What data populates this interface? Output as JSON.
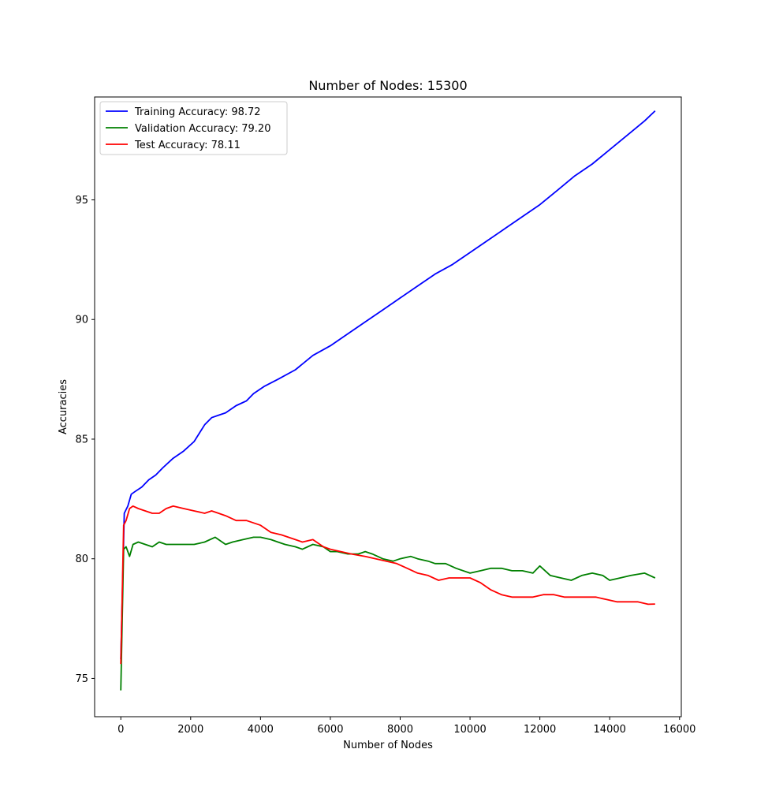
{
  "chart_data": {
    "type": "line",
    "title": "Number of Nodes: 15300",
    "xlabel": "Number of Nodes",
    "ylabel": "Accuracies",
    "xlim": [
      -750,
      16050
    ],
    "ylim": [
      73.4,
      99.3
    ],
    "xticks": [
      0,
      2000,
      4000,
      6000,
      8000,
      10000,
      12000,
      14000,
      16000
    ],
    "yticks": [
      75,
      80,
      85,
      90,
      95
    ],
    "grid": false,
    "legend_position": "upper-left",
    "series": [
      {
        "name": "Training Accuracy: 98.72",
        "color": "#0000ff",
        "x": [
          0,
          100,
          200,
          300,
          400,
          600,
          800,
          1000,
          1200,
          1500,
          1800,
          2100,
          2400,
          2600,
          2800,
          3000,
          3300,
          3600,
          3800,
          4100,
          4500,
          5000,
          5500,
          6000,
          6500,
          7000,
          7500,
          8000,
          8500,
          9000,
          9500,
          10000,
          10500,
          11000,
          11500,
          12000,
          12500,
          13000,
          13500,
          14000,
          14500,
          15000,
          15300
        ],
        "y": [
          75.8,
          81.9,
          82.2,
          82.7,
          82.8,
          83.0,
          83.3,
          83.5,
          83.8,
          84.2,
          84.5,
          84.9,
          85.6,
          85.9,
          86.0,
          86.1,
          86.4,
          86.6,
          86.9,
          87.2,
          87.5,
          87.9,
          88.5,
          88.9,
          89.4,
          89.9,
          90.4,
          90.9,
          91.4,
          91.9,
          92.3,
          92.8,
          93.3,
          93.8,
          94.3,
          94.8,
          95.4,
          96.0,
          96.5,
          97.1,
          97.7,
          98.3,
          98.72
        ]
      },
      {
        "name": "Validation Accuracy: 79.20",
        "color": "#008000",
        "x": [
          0,
          80,
          150,
          250,
          350,
          500,
          700,
          900,
          1100,
          1300,
          1500,
          1800,
          2100,
          2400,
          2700,
          3000,
          3200,
          3500,
          3800,
          4000,
          4300,
          4500,
          4700,
          5000,
          5200,
          5500,
          5800,
          6000,
          6200,
          6500,
          6800,
          7000,
          7200,
          7500,
          7800,
          8000,
          8300,
          8500,
          8800,
          9000,
          9300,
          9600,
          10000,
          10300,
          10600,
          10900,
          11200,
          11500,
          11800,
          12000,
          12300,
          12600,
          12900,
          13200,
          13500,
          13800,
          14000,
          14300,
          14600,
          15000,
          15300
        ],
        "y": [
          74.5,
          80.4,
          80.5,
          80.1,
          80.6,
          80.7,
          80.6,
          80.5,
          80.7,
          80.6,
          80.6,
          80.6,
          80.6,
          80.7,
          80.9,
          80.6,
          80.7,
          80.8,
          80.9,
          80.9,
          80.8,
          80.7,
          80.6,
          80.5,
          80.4,
          80.6,
          80.5,
          80.3,
          80.3,
          80.2,
          80.2,
          80.3,
          80.2,
          80.0,
          79.9,
          80.0,
          80.1,
          80.0,
          79.9,
          79.8,
          79.8,
          79.6,
          79.4,
          79.5,
          79.6,
          79.6,
          79.5,
          79.5,
          79.4,
          79.7,
          79.3,
          79.2,
          79.1,
          79.3,
          79.4,
          79.3,
          79.1,
          79.2,
          79.3,
          79.4,
          79.2
        ]
      },
      {
        "name": "Test Accuracy: 78.11",
        "color": "#ff0000",
        "x": [
          0,
          80,
          150,
          250,
          350,
          500,
          700,
          900,
          1100,
          1300,
          1500,
          1800,
          2100,
          2400,
          2600,
          2800,
          3000,
          3300,
          3600,
          3800,
          4000,
          4300,
          4600,
          5000,
          5200,
          5500,
          5800,
          6000,
          6300,
          6600,
          7000,
          7300,
          7600,
          7900,
          8200,
          8500,
          8800,
          9100,
          9400,
          9700,
          10000,
          10300,
          10600,
          10900,
          11200,
          11500,
          11800,
          12100,
          12400,
          12700,
          13000,
          13300,
          13600,
          13900,
          14200,
          14500,
          14800,
          15100,
          15300
        ],
        "y": [
          75.6,
          81.4,
          81.6,
          82.1,
          82.2,
          82.1,
          82.0,
          81.9,
          81.9,
          82.1,
          82.2,
          82.1,
          82.0,
          81.9,
          82.0,
          81.9,
          81.8,
          81.6,
          81.6,
          81.5,
          81.4,
          81.1,
          81.0,
          80.8,
          80.7,
          80.8,
          80.5,
          80.4,
          80.3,
          80.2,
          80.1,
          80.0,
          79.9,
          79.8,
          79.6,
          79.4,
          79.3,
          79.1,
          79.2,
          79.2,
          79.2,
          79.0,
          78.7,
          78.5,
          78.4,
          78.4,
          78.4,
          78.5,
          78.5,
          78.4,
          78.4,
          78.4,
          78.4,
          78.3,
          78.2,
          78.2,
          78.2,
          78.1,
          78.11
        ]
      }
    ]
  }
}
